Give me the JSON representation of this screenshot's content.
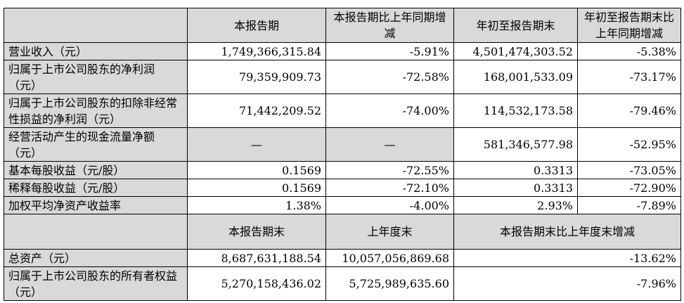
{
  "header1": [
    "",
    "本报告期",
    "本报告期比上年同期增减",
    "年初至报告期末",
    "年初至报告期末比上年同期增减"
  ],
  "rows1": [
    {
      "label": "营业收入（元）",
      "values": [
        "1,749,366,315.84",
        "-5.91%",
        "4,501,474,303.52",
        "-5.38%"
      ]
    },
    {
      "label": "归属于上市公司股东的净利润（元）",
      "values": [
        "79,359,909.73",
        "-72.58%",
        "168,001,533.09",
        "-73.17%"
      ]
    },
    {
      "label": "归属于上市公司股东的扣除非经常性损益的净利润（元）",
      "values": [
        "71,442,209.52",
        "-74.00%",
        "114,532,173.58",
        "-79.46%"
      ]
    },
    {
      "label": "经营活动产生的现金流量净额（元）",
      "values": [
        "—",
        "—",
        "581,346,577.98",
        "-52.95%"
      ]
    },
    {
      "label": "基本每股收益（元/股）",
      "values": [
        "0.1569",
        "-72.55%",
        "0.3313",
        "-73.05%"
      ]
    },
    {
      "label": "稀释每股收益（元/股）",
      "values": [
        "0.1569",
        "-72.10%",
        "0.3313",
        "-72.90%"
      ]
    },
    {
      "label": "加权平均净资产收益率",
      "values": [
        "1.38%",
        "-4.00%",
        "2.93%",
        "-7.89%"
      ]
    }
  ],
  "header2": [
    "",
    "本报告期末",
    "上年度末",
    "本报告期末比上年度末增减"
  ],
  "rows2": [
    {
      "label": "总资产（元）",
      "values": [
        "8,687,631,188.54",
        "10,057,056,869.68",
        "-13.62%"
      ]
    },
    {
      "label": "归属于上市公司股东的所有者权益（元）",
      "values": [
        "5,270,158,436.02",
        "5,725,989,635.60",
        "-7.96%"
      ]
    }
  ]
}
